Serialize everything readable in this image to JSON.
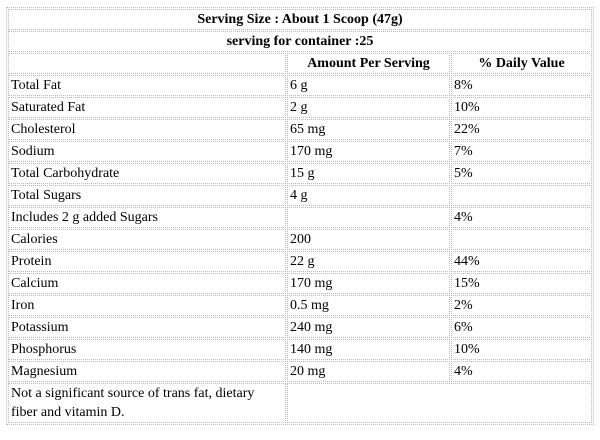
{
  "serving_size": "Serving Size : About 1 Scoop (47g)",
  "servings_per_container": "serving for container :25",
  "columns": {
    "nutrient": "",
    "amount": "Amount Per Serving",
    "daily_value": "% Daily Value"
  },
  "rows": [
    {
      "nutrient": "Total Fat",
      "amount": "6 g",
      "dv": "8%"
    },
    {
      "nutrient": "Saturated Fat",
      "amount": "2 g",
      "dv": "10%"
    },
    {
      "nutrient": "Cholesterol",
      "amount": "65 mg",
      "dv": "22%"
    },
    {
      "nutrient": "Sodium",
      "amount": "170 mg",
      "dv": "7%"
    },
    {
      "nutrient": "Total Carbohydrate",
      "amount": "15 g",
      "dv": "5%"
    },
    {
      "nutrient": "Total Sugars",
      "amount": "4 g",
      "dv": ""
    },
    {
      "nutrient": "Includes 2 g added Sugars",
      "amount": "",
      "dv": "4%"
    },
    {
      "nutrient": "Calories",
      "amount": "200",
      "dv": ""
    },
    {
      "nutrient": "Protein",
      "amount": "22 g",
      "dv": "44%"
    },
    {
      "nutrient": "Calcium",
      "amount": "170 mg",
      "dv": "15%"
    },
    {
      "nutrient": "Iron",
      "amount": "0.5 mg",
      "dv": "2%"
    },
    {
      "nutrient": "Potassium",
      "amount": "240 mg",
      "dv": "6%"
    },
    {
      "nutrient": "Phosphorus",
      "amount": "140 mg",
      "dv": "10%"
    },
    {
      "nutrient": "Magnesium",
      "amount": "20 mg",
      "dv": "4%"
    }
  ],
  "footnote": "Not a significant source of trans fat, dietary fiber and vitamin D."
}
